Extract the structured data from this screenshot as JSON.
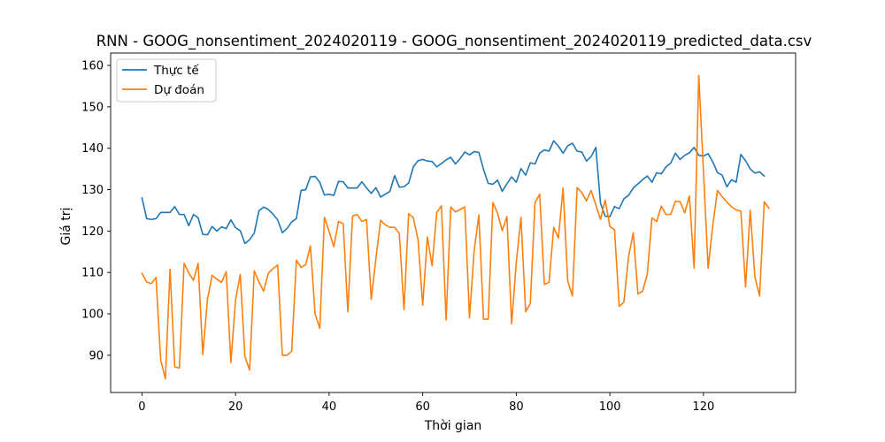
{
  "chart_data": {
    "type": "line",
    "title": "RNN - GOOG_nonsentiment_2024020119 - GOOG_nonsentiment_2024020119_predicted_data.csv",
    "xlabel": "Thời gian",
    "ylabel": "Giá trị",
    "xlim": [
      -6.7,
      139.7
    ],
    "ylim": [
      81,
      163
    ],
    "x_ticks": [
      0,
      20,
      40,
      60,
      80,
      100,
      120
    ],
    "y_ticks": [
      90,
      100,
      110,
      120,
      130,
      140,
      150,
      160
    ],
    "grid": false,
    "legend_position": "top-left",
    "series": [
      {
        "name": "Thực tế",
        "color": "#1f77b4",
        "values": [
          128.0,
          123.0,
          122.8,
          123.0,
          124.5,
          124.5,
          124.5,
          125.9,
          124.0,
          124.0,
          121.3,
          124.0,
          123.2,
          119.2,
          119.1,
          121.1,
          120.0,
          121.0,
          120.6,
          122.7,
          120.8,
          120.1,
          117.0,
          117.9,
          119.5,
          124.9,
          125.8,
          125.2,
          124.1,
          122.7,
          119.6,
          120.6,
          122.2,
          123.0,
          129.8,
          130.0,
          133.1,
          133.2,
          131.8,
          128.7,
          128.9,
          128.6,
          132.0,
          131.9,
          130.4,
          130.4,
          130.4,
          131.9,
          130.4,
          129.1,
          130.5,
          128.2,
          128.9,
          129.6,
          133.4,
          130.6,
          130.7,
          131.6,
          135.5,
          137.0,
          137.3,
          136.9,
          136.8,
          135.5,
          136.3,
          137.2,
          137.8,
          136.2,
          137.5,
          139.1,
          138.4,
          139.2,
          139.0,
          134.9,
          131.5,
          131.3,
          132.3,
          129.6,
          131.4,
          133.1,
          131.8,
          135.1,
          133.5,
          136.5,
          136.2,
          138.8,
          139.6,
          139.3,
          141.8,
          140.5,
          138.8,
          140.6,
          141.2,
          139.3,
          139.1,
          136.9,
          138.0,
          140.2,
          126.7,
          123.6,
          123.5,
          125.9,
          125.4,
          127.8,
          128.6,
          130.4,
          131.4,
          132.4,
          133.3,
          131.8,
          134.1,
          133.8,
          135.5,
          136.4,
          138.8,
          137.3,
          138.3,
          138.9,
          140.2,
          138.3,
          138.1,
          138.7,
          136.7,
          134.1,
          133.5,
          130.7,
          132.4,
          131.8,
          138.5,
          137.0,
          135.0,
          134.0,
          134.3,
          133.3
        ]
      },
      {
        "name": "Dự đoán",
        "color": "#ff7f0e",
        "values": [
          109.8,
          107.7,
          107.3,
          108.8,
          88.8,
          84.3,
          110.8,
          87.2,
          86.9,
          112.2,
          109.9,
          108.1,
          112.2,
          90.2,
          103.6,
          109.3,
          108.4,
          107.6,
          110.2,
          88.2,
          103.3,
          109.5,
          89.7,
          86.4,
          110.4,
          107.7,
          105.5,
          109.8,
          110.9,
          111.8,
          90.0,
          90.0,
          91.0,
          113.0,
          111.2,
          111.9,
          116.4,
          100.0,
          96.5,
          123.3,
          119.9,
          116.2,
          122.3,
          121.8,
          100.5,
          123.6,
          124.0,
          122.3,
          122.8,
          103.5,
          113.4,
          122.6,
          121.5,
          120.9,
          120.9,
          119.4,
          101.0,
          124.2,
          123.2,
          117.9,
          102.1,
          118.6,
          111.6,
          124.5,
          126.1,
          98.5,
          125.8,
          124.6,
          125.2,
          125.8,
          99.0,
          115.3,
          123.9,
          98.7,
          98.7,
          126.9,
          124.3,
          120.1,
          123.5,
          97.6,
          112.4,
          123.3,
          100.5,
          102.5,
          126.8,
          128.9,
          107.1,
          107.6,
          120.9,
          118.3,
          130.4,
          107.9,
          104.3,
          130.5,
          129.3,
          127.3,
          129.8,
          126.3,
          122.8,
          127.5,
          121.1,
          120.3,
          101.8,
          102.8,
          113.8,
          119.6,
          104.8,
          105.5,
          109.6,
          123.2,
          122.3,
          126.0,
          124.0,
          124.0,
          127.2,
          127.1,
          124.4,
          128.5,
          111.0,
          157.6,
          134.6,
          111.0,
          121.4,
          129.8,
          128.3,
          127.0,
          125.9,
          125.1,
          124.8,
          106.5,
          125.0,
          108.9,
          104.3,
          127.1,
          125.5
        ]
      }
    ]
  }
}
